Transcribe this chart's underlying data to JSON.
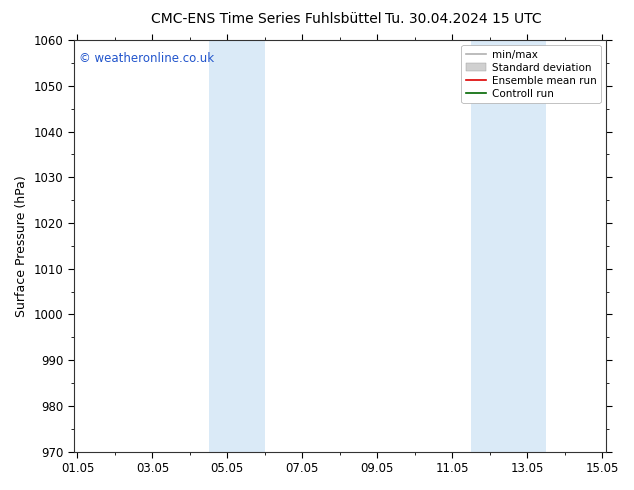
{
  "title": "CMC-ENS Time Series Fuhlsbüttel",
  "title2": "Tu. 30.04.2024 15 UTC",
  "ylabel": "Surface Pressure (hPa)",
  "ylim": [
    970,
    1060
  ],
  "yticks": [
    970,
    980,
    990,
    1000,
    1010,
    1020,
    1030,
    1040,
    1050,
    1060
  ],
  "xtick_labels": [
    "01.05",
    "03.05",
    "05.05",
    "07.05",
    "09.05",
    "11.05",
    "13.05",
    "15.05"
  ],
  "xtick_positions": [
    0,
    2,
    4,
    6,
    8,
    10,
    12,
    14
  ],
  "xlim": [
    -0.1,
    14.1
  ],
  "watermark": "© weatheronline.co.uk",
  "shaded_bands": [
    {
      "xmin": 3.5,
      "xmax": 5.0
    },
    {
      "xmin": 10.5,
      "xmax": 12.5
    }
  ],
  "band_color": "#daeaf7",
  "background_color": "#ffffff",
  "legend_items": [
    {
      "label": "min/max",
      "color": "#b0b0b0",
      "lw": 1.2,
      "type": "line"
    },
    {
      "label": "Standard deviation",
      "color": "#d0d0d0",
      "lw": 8,
      "type": "bar"
    },
    {
      "label": "Ensemble mean run",
      "color": "#dd0000",
      "lw": 1.2,
      "type": "line"
    },
    {
      "label": "Controll run",
      "color": "#006600",
      "lw": 1.2,
      "type": "line"
    }
  ],
  "title_fontsize": 10,
  "tick_fontsize": 8.5,
  "ylabel_fontsize": 9,
  "watermark_color": "#2255cc",
  "watermark_fontsize": 8.5,
  "legend_fontsize": 7.5
}
